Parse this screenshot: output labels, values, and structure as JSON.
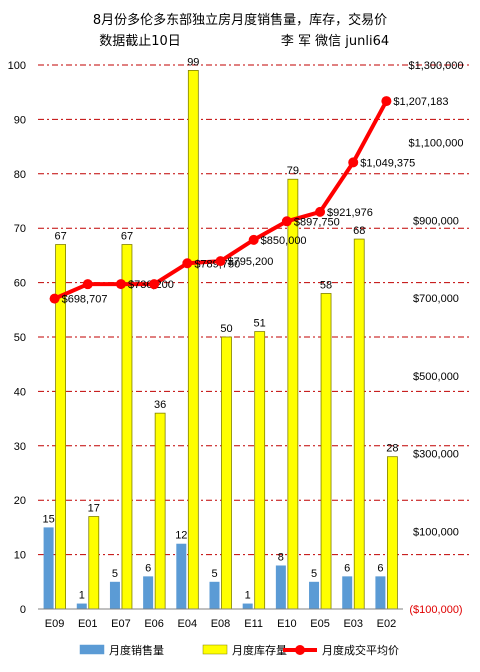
{
  "chart_data": {
    "type": "bar",
    "title": "8月份多伦多东部独立房月度销售量，库存，交易价",
    "subtitle": "数据截止10日",
    "author": "李 军 微信  junli64",
    "categories": [
      "E09",
      "E01",
      "E07",
      "E06",
      "E04",
      "E08",
      "E11",
      "E10",
      "E05",
      "E03",
      "E02"
    ],
    "series": [
      {
        "name": "月度销售量",
        "type": "bar",
        "axis": "left",
        "color": "#5b9bd5",
        "values": [
          15,
          1,
          5,
          6,
          12,
          5,
          1,
          8,
          5,
          6,
          6
        ],
        "labels": [
          "15",
          "1",
          "5",
          "6",
          "12",
          "5",
          "1",
          "8",
          "5",
          "6",
          "6"
        ]
      },
      {
        "name": "月度库存量",
        "type": "bar",
        "axis": "left",
        "color": "#ffff00",
        "values": [
          67,
          17,
          67,
          36,
          99,
          50,
          51,
          79,
          58,
          68,
          28
        ],
        "labels": [
          "67",
          "17",
          "67",
          "36",
          "99",
          "50",
          "51",
          "79",
          "58",
          "68",
          "28"
        ]
      },
      {
        "name": "月度成交平均价",
        "type": "line",
        "axis": "right",
        "color": "#ff0000",
        "values": [
          698707,
          736000,
          736200,
          736000,
          789750,
          795200,
          850000,
          897750,
          921976,
          1049375,
          1207183
        ],
        "labels": [
          "$698,707",
          "",
          "$736,200",
          "",
          "$789,750",
          "$795,200",
          "$850,000",
          "$897,750",
          "$921,976",
          "$1,049,375",
          "$1,207,183"
        ]
      }
    ],
    "y_left": {
      "min": 0,
      "max": 100,
      "ticks": [
        "0",
        "10",
        "20",
        "30",
        "40",
        "50",
        "60",
        "70",
        "80",
        "90",
        "100"
      ]
    },
    "y_right": {
      "min": -100000,
      "max": 1300000,
      "ticks": [
        "($100,000)",
        "$100,000",
        "$300,000",
        "$500,000",
        "$700,000",
        "$900,000",
        "$1,100,000",
        "$1,300,000"
      ],
      "tick_values": [
        -100000,
        100000,
        300000,
        500000,
        700000,
        900000,
        1100000,
        1300000
      ]
    },
    "grid": true,
    "grid_color": "#c00000",
    "legend_position": "bottom"
  }
}
